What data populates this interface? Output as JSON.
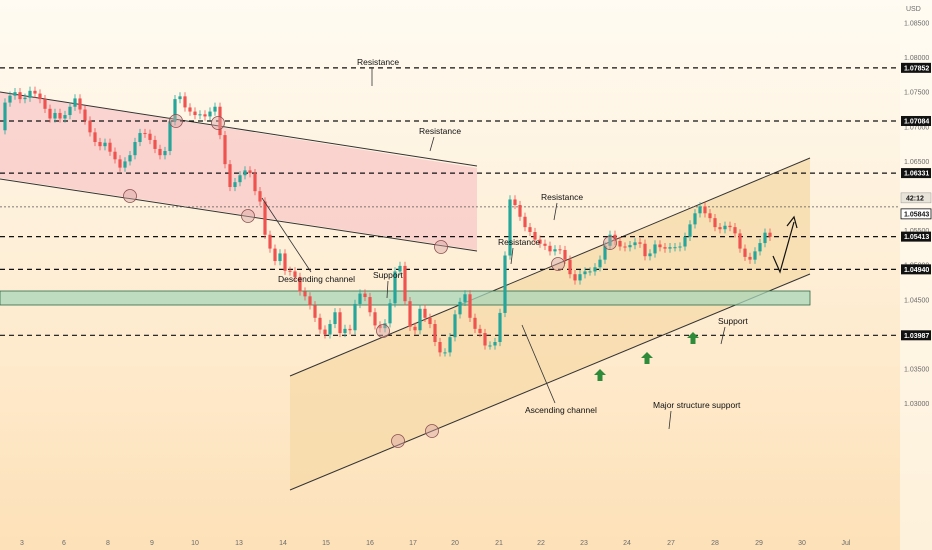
{
  "chart_data": {
    "type": "line",
    "currency_label": "USD",
    "ylim": [
      1.028,
      1.0895
    ],
    "grid": false,
    "x_ticks": [
      "3",
      "6",
      "8",
      "9",
      "10",
      "13",
      "14",
      "15",
      "16",
      "17",
      "20",
      "21",
      "22",
      "23",
      "24",
      "27",
      "28",
      "29",
      "30",
      "Jul"
    ],
    "y_ticks": [
      1.085,
      1.08,
      1.075,
      1.07,
      1.065,
      1.06,
      1.055,
      1.05,
      1.045,
      1.04,
      1.035,
      1.03
    ],
    "series": [
      {
        "x": [
          0,
          5,
          10,
          15,
          20,
          25,
          30,
          35,
          40,
          45,
          50,
          55,
          60,
          65,
          70,
          75,
          80,
          85,
          90,
          95,
          100,
          105,
          110,
          115,
          120,
          125,
          130,
          135,
          140,
          145,
          150,
          155,
          160,
          165,
          170,
          175,
          180,
          185,
          190,
          195,
          200,
          205,
          210,
          215,
          220,
          225,
          230,
          235,
          240,
          245,
          250,
          255,
          260,
          265,
          270,
          275,
          280,
          285,
          290,
          295,
          300,
          305,
          310,
          315,
          320,
          325,
          330,
          335,
          340,
          345,
          350,
          355,
          360,
          365,
          370,
          375,
          380,
          385,
          390,
          395,
          400,
          405,
          410,
          415,
          420,
          425,
          430,
          435,
          440,
          445,
          450,
          455,
          460,
          465,
          470,
          475,
          480,
          485,
          490,
          495,
          500,
          505,
          510,
          515,
          520,
          525,
          530,
          535,
          540,
          545,
          550,
          555,
          560,
          565,
          570,
          575,
          580,
          585,
          590,
          595,
          600,
          605,
          610,
          615,
          620,
          625,
          630,
          635,
          640,
          645,
          650,
          655,
          660,
          665,
          670,
          675,
          680,
          685,
          690,
          695,
          700,
          705,
          710,
          715,
          720,
          725,
          730,
          735,
          740,
          745,
          750,
          755,
          760,
          765,
          770
        ],
        "y": [
          1.0695,
          1.0735,
          1.0745,
          1.075,
          1.074,
          1.0742,
          1.0752,
          1.0748,
          1.074,
          1.0726,
          1.0712,
          1.072,
          1.0712,
          1.0717,
          1.0729,
          1.0741,
          1.0725,
          1.0709,
          1.0692,
          1.0678,
          1.0672,
          1.0677,
          1.0664,
          1.0653,
          1.0641,
          1.065,
          1.0659,
          1.0678,
          1.0691,
          1.069,
          1.0681,
          1.0668,
          1.0659,
          1.0665,
          1.0708,
          1.074,
          1.0744,
          1.0728,
          1.0722,
          1.0717,
          1.0718,
          1.0715,
          1.0722,
          1.0729,
          1.0688,
          1.0646,
          1.0613,
          1.062,
          1.063,
          1.0637,
          1.0633,
          1.0607,
          1.0592,
          1.0544,
          1.0524,
          1.0506,
          1.0517,
          1.0492,
          1.0491,
          1.0483,
          1.0462,
          1.0455,
          1.0442,
          1.0424,
          1.0407,
          1.04,
          1.0415,
          1.0432,
          1.0402,
          1.0408,
          1.0406,
          1.0444,
          1.0459,
          1.0454,
          1.0432,
          1.0413,
          1.0409,
          1.0416,
          1.0445,
          1.0491,
          1.0499,
          1.0448,
          1.0411,
          1.0406,
          1.0437,
          1.0424,
          1.0415,
          1.0389,
          1.0374,
          1.0374,
          1.0396,
          1.0429,
          1.0447,
          1.0458,
          1.0424,
          1.0408,
          1.0402,
          1.0384,
          1.0384,
          1.0389,
          1.0431,
          1.0514,
          1.0595,
          1.0587,
          1.057,
          1.0555,
          1.0548,
          1.0537,
          1.0531,
          1.0528,
          1.052,
          1.0523,
          1.0522,
          1.0508,
          1.0487,
          1.0478,
          1.0487,
          1.0491,
          1.0491,
          1.0497,
          1.0508,
          1.0528,
          1.0544,
          1.0535,
          1.0527,
          1.0526,
          1.0529,
          1.0533,
          1.0531,
          1.0513,
          1.0517,
          1.053,
          1.0526,
          1.0524,
          1.0526,
          1.0526,
          1.0527,
          1.0541,
          1.0559,
          1.0575,
          1.0585,
          1.0575,
          1.0568,
          1.0555,
          1.0552,
          1.0557,
          1.0555,
          1.0546,
          1.0524,
          1.0512,
          1.0508,
          1.052,
          1.0532,
          1.0547,
          1.0541
        ]
      }
    ],
    "levels": [
      {
        "label": "Resistance",
        "price": 1.07852,
        "badge": "1.07852"
      },
      {
        "label": "Resistance",
        "price": 1.07084,
        "badge": "1.07084"
      },
      {
        "label": "Resistance",
        "price": 1.06331,
        "badge": "1.06331"
      },
      {
        "label": "Support",
        "price": 1.05413,
        "badge": "1.05413"
      },
      {
        "label": "Support",
        "price": 1.0494,
        "badge": "1.04940"
      },
      {
        "label": "Major structure support",
        "price": 1.03987,
        "badge": "1.03987"
      }
    ],
    "current_price": {
      "value": 1.05843,
      "timer": "42:12",
      "badge": "1.05843"
    },
    "annotations": {
      "resistance_1": "Resistance",
      "resistance_2": "Resistance",
      "resistance_3": "Resistance",
      "resistance_4": "Resistance",
      "support_1": "Support",
      "support_2": "Support",
      "major_support": "Major structure support",
      "descending_channel": "Descending channel",
      "ascending_channel": "Ascending channel"
    },
    "colors": {
      "bull": "#26a69a",
      "bear": "#ef5350",
      "descending_zone": "#f8c8c8",
      "ascending_zone": "#f5d9a8",
      "support_zone": "#a8d5b8",
      "arrow": "#2e8b3a"
    }
  }
}
